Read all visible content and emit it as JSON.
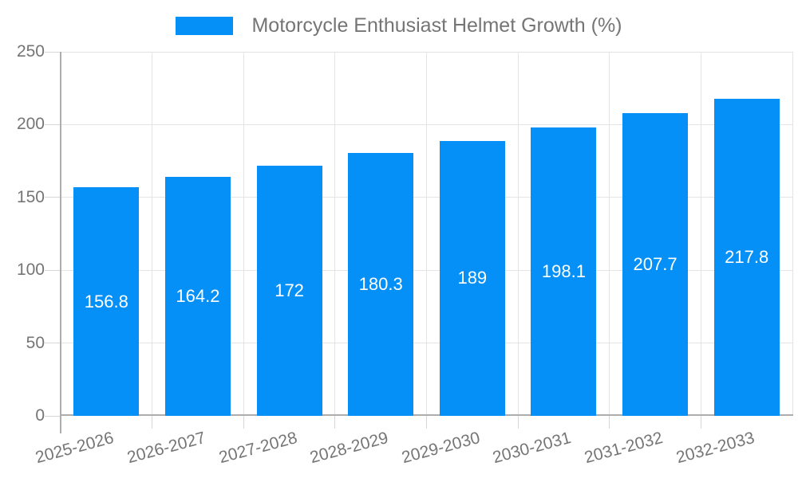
{
  "chart_data": {
    "type": "bar",
    "title": "Motorcycle Enthusiast Helmet Growth (%)",
    "legend": {
      "position": "top",
      "entries": [
        "Motorcycle Enthusiast Helmet Growth (%)"
      ]
    },
    "categories": [
      "2025-2026",
      "2026-2027",
      "2027-2028",
      "2028-2029",
      "2029-2030",
      "2030-2031",
      "2031-2032",
      "2032-2033"
    ],
    "series": [
      {
        "name": "Motorcycle Enthusiast Helmet Growth (%)",
        "values": [
          156.8,
          164.2,
          172,
          180.3,
          189,
          198.1,
          207.7,
          217.8
        ]
      }
    ],
    "xlabel": "",
    "ylabel": "",
    "ylim": [
      0,
      250
    ],
    "yticks": [
      0,
      50,
      100,
      150,
      200,
      250
    ],
    "grid": true,
    "value_labels_shown": true,
    "colors": {
      "bar": "#0590f8",
      "value_label_text": "#ffffff",
      "axis_text": "#757575",
      "grid_line": "#e4e4e4",
      "tick_line": "#d6d6d6",
      "axis_line": "#adadad",
      "background": "#ffffff"
    }
  }
}
